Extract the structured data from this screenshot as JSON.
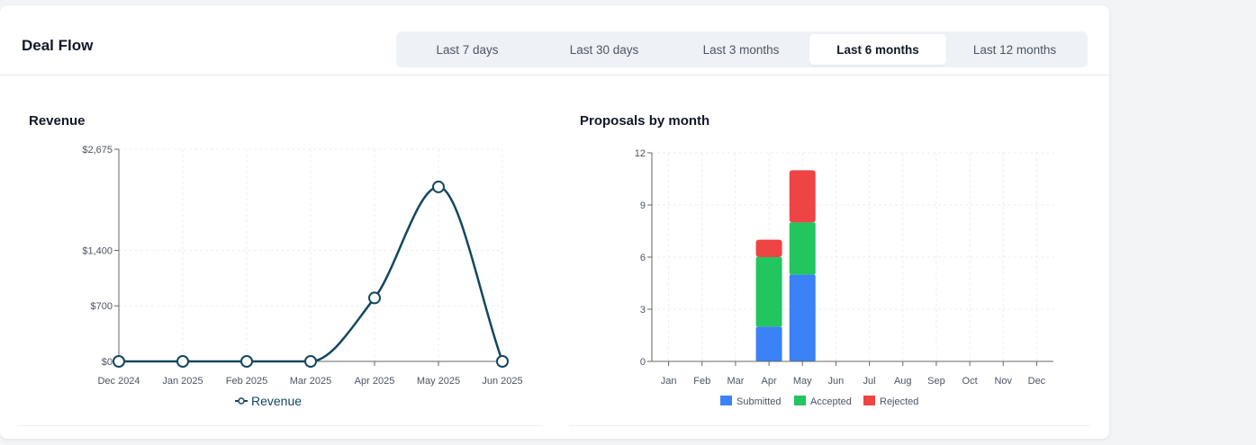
{
  "header": {
    "title": "Deal Flow",
    "ranges": [
      {
        "label": "Last 7 days",
        "active": false
      },
      {
        "label": "Last 30 days",
        "active": false
      },
      {
        "label": "Last 3 months",
        "active": false
      },
      {
        "label": "Last 6 months",
        "active": true
      },
      {
        "label": "Last 12 months",
        "active": false
      }
    ]
  },
  "chart_data": [
    {
      "type": "line",
      "title": "Revenue",
      "categories": [
        "Dec 2024",
        "Jan 2025",
        "Feb 2025",
        "Mar 2025",
        "Apr 2025",
        "May 2025",
        "Jun 2025"
      ],
      "series": [
        {
          "name": "Revenue",
          "values": [
            0,
            0,
            0,
            0,
            800,
            2200,
            0
          ],
          "color": "#124760"
        }
      ],
      "yticks": [
        0,
        700,
        1400,
        2675
      ],
      "ytick_labels": [
        "$0",
        "$700",
        "$1,400",
        "$2,675"
      ],
      "ylim": [
        0,
        2675
      ],
      "legend": "bottom",
      "grid": true
    },
    {
      "type": "bar",
      "stacked": true,
      "title": "Proposals by month",
      "categories": [
        "Jan",
        "Feb",
        "Mar",
        "Apr",
        "May",
        "Jun",
        "Jul",
        "Aug",
        "Sep",
        "Oct",
        "Nov",
        "Dec"
      ],
      "series": [
        {
          "name": "Submitted",
          "values": [
            0,
            0,
            0,
            2,
            5,
            0,
            0,
            0,
            0,
            0,
            0,
            0
          ],
          "color": "#3b82f6"
        },
        {
          "name": "Accepted",
          "values": [
            0,
            0,
            0,
            4,
            3,
            0,
            0,
            0,
            0,
            0,
            0,
            0
          ],
          "color": "#22c55e"
        },
        {
          "name": "Rejected",
          "values": [
            0,
            0,
            0,
            1,
            3,
            0,
            0,
            0,
            0,
            0,
            0,
            0
          ],
          "color": "#ef4444"
        }
      ],
      "yticks": [
        0,
        3,
        6,
        9,
        12
      ],
      "ytick_labels": [
        "0",
        "3",
        "6",
        "9",
        "12"
      ],
      "ylim": [
        0,
        12
      ],
      "legend": "bottom",
      "grid": true
    }
  ]
}
